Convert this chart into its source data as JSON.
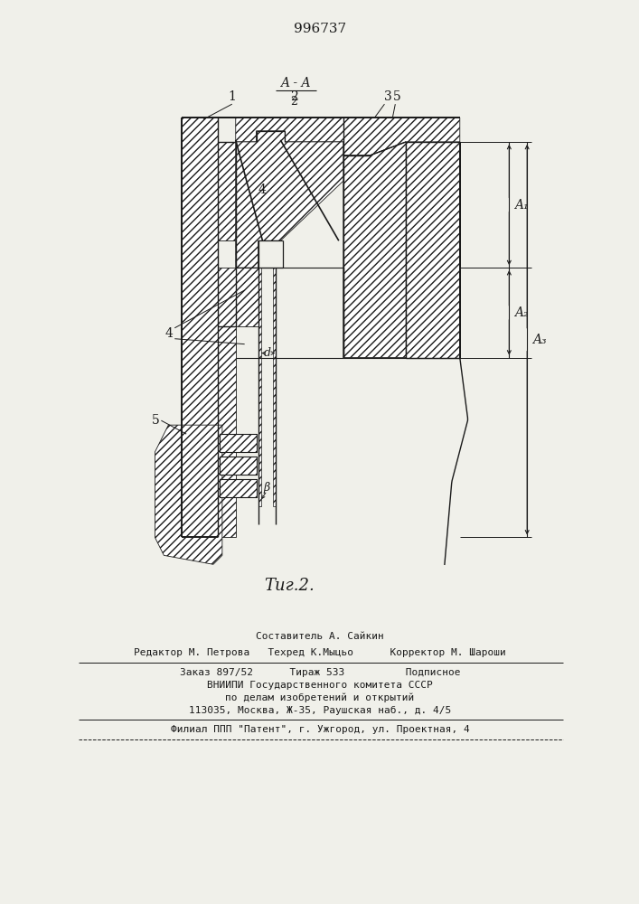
{
  "patent_number": "996737",
  "fig_label": "Τиг.2.",
  "label_1": "1",
  "label_2": "2",
  "label_3": "3",
  "label_4a": "4",
  "label_4b": "4",
  "label_5a": "5",
  "label_5b": "5",
  "label_d": "d",
  "label_b": "β",
  "label_A1": "A₁",
  "label_A2": "A₂",
  "label_A3": "A₃",
  "footer_line1": "Составитель А. Сайкин",
  "footer_line2": "Редактор М. Петрова   Техред К.Мыцьо      Корректор М. Шароши",
  "footer_line3": "Заказ 897/52      Тираж 533          Подписное",
  "footer_line4": "ВНИИПИ Государственного комитета СССР",
  "footer_line5": "по делам изобретений и открытий",
  "footer_line6": "113035, Москва, Ж-35, Раушская наб., д. 4/5",
  "footer_line7": "Филиал ППП \"Патент\", г. Ужгород, ул. Проектная, 4",
  "bg_color": "#f0f0ea",
  "lc": "#1a1a1a"
}
